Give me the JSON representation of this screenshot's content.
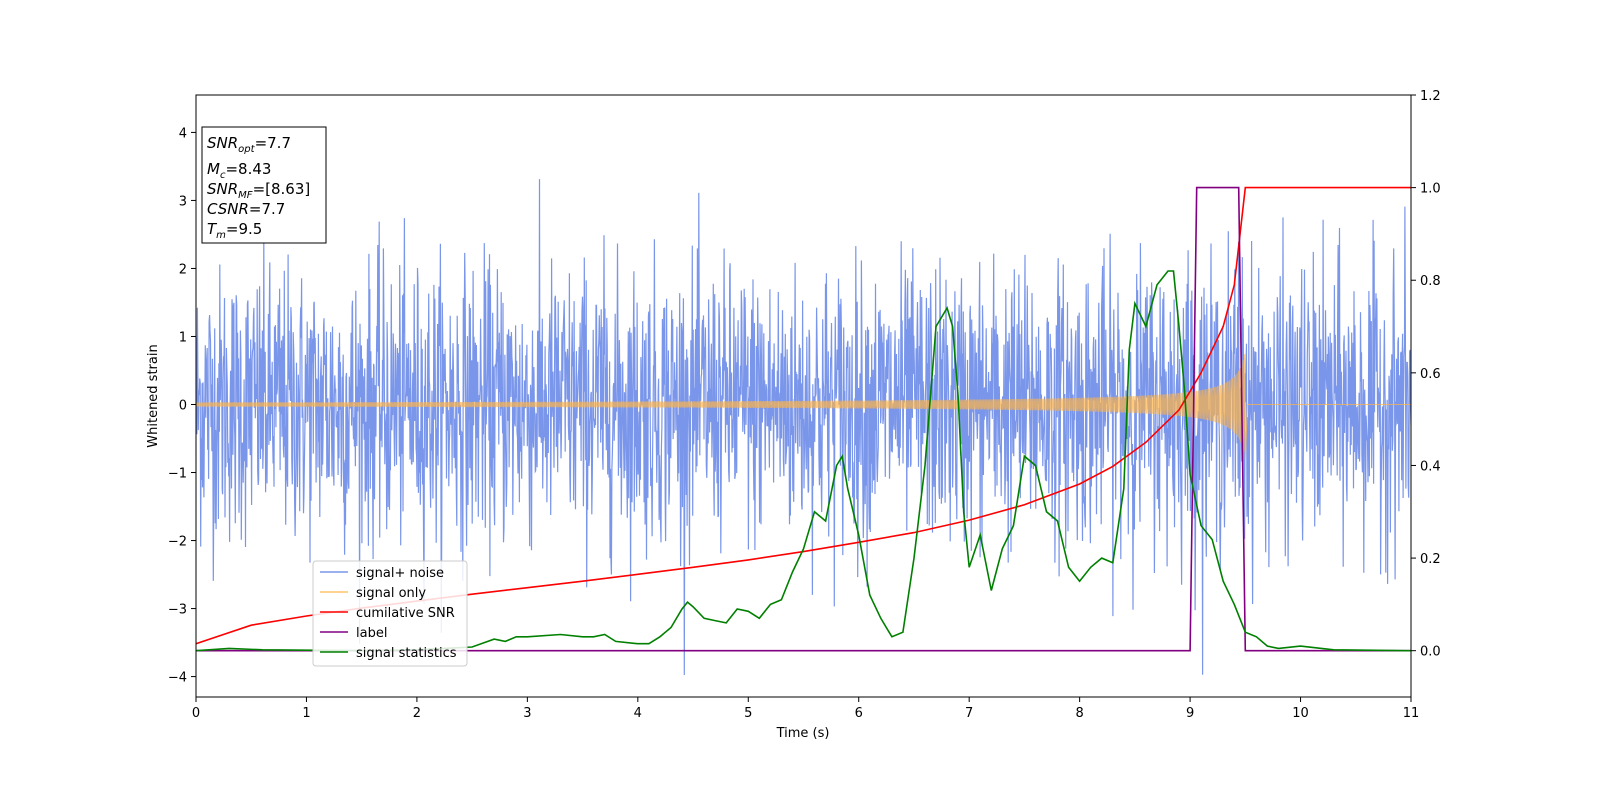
{
  "chart_data": {
    "type": "line",
    "xlabel": "Time (s)",
    "ylabel": "Whitened strain",
    "xlim": [
      0,
      11
    ],
    "ylim_left": [
      -4.3,
      4.55
    ],
    "ylim_right": [
      -0.1,
      1.2
    ],
    "x_ticks": [
      0,
      1,
      2,
      3,
      4,
      5,
      6,
      7,
      8,
      9,
      10,
      11
    ],
    "y_ticks_left": [
      -4,
      -3,
      -2,
      -1,
      0,
      1,
      2,
      3,
      4
    ],
    "y_ticks_right": [
      "0.0",
      "0.2",
      "0.4",
      "0.6",
      "0.8",
      "1.0",
      "1.2"
    ],
    "y_ticks_right_values": [
      0.0,
      0.2,
      0.4,
      0.6,
      0.8,
      1.0,
      1.2
    ],
    "grid": false,
    "legend_position": "lower-left",
    "info_box": {
      "snr_opt": {
        "base": "SNR",
        "sub": "opt",
        "value": "=7.7"
      },
      "mc": {
        "base": "M",
        "sub": "c",
        "value": "=8.43"
      },
      "snr_mf": {
        "base": "SNR",
        "sub": "MF",
        "value": "=[8.63]"
      },
      "csnr": {
        "base": "CSNR",
        "sub": "",
        "value": "=7.7"
      },
      "tm": {
        "base": "T",
        "sub": "m",
        "value": "=9.5"
      }
    },
    "series": [
      {
        "name": "signal+ noise",
        "axis": "left",
        "color": "#4169e1",
        "description_params": {
          "noise_sigma": 1.0,
          "duration": 11,
          "samples": 2600
        }
      },
      {
        "name": "signal only",
        "axis": "left",
        "color": "#ffb347",
        "envelope": {
          "t_merge": 9.5,
          "amp_start": 0.03,
          "amp_merge": 0.8
        }
      },
      {
        "name": "cumilative SNR",
        "axis": "right",
        "color": "#ff0000",
        "x": [
          0,
          0.5,
          1,
          1.5,
          2,
          2.5,
          3,
          3.5,
          4,
          4.5,
          5,
          5.5,
          6,
          6.5,
          7,
          7.5,
          8,
          8.3,
          8.6,
          8.9,
          9.1,
          9.3,
          9.4,
          9.5,
          11
        ],
        "y": [
          0.015,
          0.055,
          0.075,
          0.092,
          0.107,
          0.122,
          0.136,
          0.15,
          0.165,
          0.18,
          0.196,
          0.214,
          0.234,
          0.255,
          0.282,
          0.315,
          0.36,
          0.398,
          0.45,
          0.52,
          0.6,
          0.7,
          0.79,
          1.0,
          1.0
        ]
      },
      {
        "name": "label",
        "axis": "right",
        "color": "#800080",
        "x": [
          0,
          9.0,
          9.06,
          9.44,
          9.5,
          11
        ],
        "y": [
          0,
          0,
          1,
          1,
          0,
          0
        ]
      },
      {
        "name": "signal statistics",
        "axis": "right",
        "color": "#008000",
        "x": [
          0,
          0.3,
          0.6,
          1.0,
          1.5,
          2.0,
          2.5,
          2.7,
          2.8,
          2.9,
          3.0,
          3.3,
          3.5,
          3.6,
          3.7,
          3.8,
          4.0,
          4.1,
          4.2,
          4.3,
          4.4,
          4.45,
          4.5,
          4.6,
          4.7,
          4.8,
          4.9,
          5.0,
          5.1,
          5.2,
          5.3,
          5.4,
          5.5,
          5.6,
          5.7,
          5.8,
          5.85,
          5.9,
          6.0,
          6.1,
          6.2,
          6.3,
          6.4,
          6.5,
          6.6,
          6.7,
          6.8,
          6.85,
          6.9,
          6.95,
          7.0,
          7.1,
          7.2,
          7.3,
          7.4,
          7.5,
          7.6,
          7.7,
          7.8,
          7.9,
          8.0,
          8.1,
          8.2,
          8.3,
          8.4,
          8.45,
          8.5,
          8.6,
          8.7,
          8.8,
          8.85,
          8.9,
          8.95,
          9.0,
          9.1,
          9.2,
          9.3,
          9.4,
          9.5,
          9.6,
          9.7,
          9.8,
          10.0,
          10.3,
          11.0
        ],
        "y": [
          0.0,
          0.005,
          0.002,
          0.001,
          0.0,
          0.002,
          0.008,
          0.025,
          0.02,
          0.03,
          0.03,
          0.035,
          0.03,
          0.03,
          0.035,
          0.02,
          0.015,
          0.015,
          0.03,
          0.05,
          0.09,
          0.105,
          0.095,
          0.07,
          0.065,
          0.06,
          0.09,
          0.085,
          0.07,
          0.1,
          0.11,
          0.17,
          0.22,
          0.3,
          0.28,
          0.4,
          0.42,
          0.35,
          0.25,
          0.12,
          0.07,
          0.03,
          0.04,
          0.2,
          0.4,
          0.7,
          0.74,
          0.7,
          0.55,
          0.3,
          0.18,
          0.25,
          0.13,
          0.22,
          0.27,
          0.42,
          0.4,
          0.3,
          0.28,
          0.18,
          0.15,
          0.18,
          0.2,
          0.19,
          0.35,
          0.65,
          0.75,
          0.7,
          0.79,
          0.82,
          0.82,
          0.7,
          0.56,
          0.38,
          0.27,
          0.24,
          0.15,
          0.1,
          0.04,
          0.03,
          0.01,
          0.005,
          0.01,
          0.002,
          0.0
        ]
      }
    ]
  }
}
